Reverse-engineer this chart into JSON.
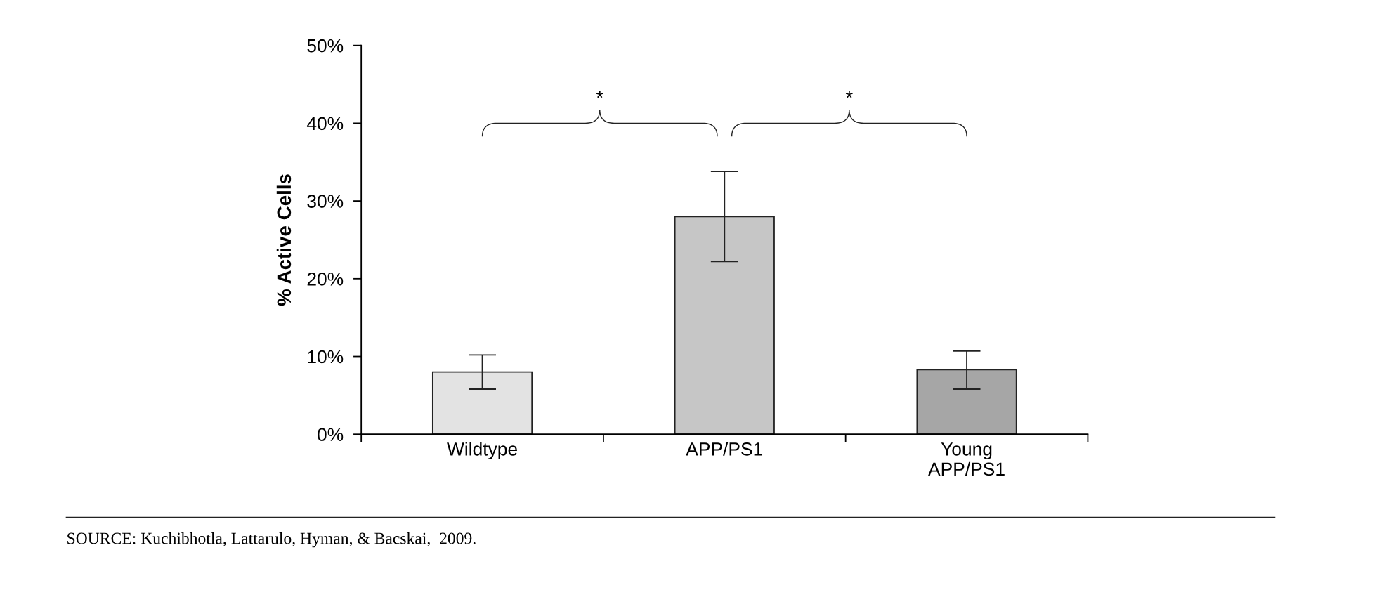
{
  "chart_data": {
    "type": "bar",
    "ylabel": "% Active Cells",
    "categories": [
      "Wildtype",
      "APP/PS1",
      "Young\nAPP/PS1"
    ],
    "values": [
      8.0,
      28.0,
      8.3
    ],
    "colors": [
      "#e3e3e3",
      "#c6c6c6",
      "#a6a6a6"
    ],
    "errors": [
      [
        5.8,
        10.2
      ],
      [
        22.2,
        33.8
      ],
      [
        5.8,
        10.7
      ]
    ],
    "ylim": [
      0,
      50
    ],
    "yticks": [
      {
        "value": 0,
        "label": "0%"
      },
      {
        "value": 10,
        "label": "10%"
      },
      {
        "value": 20,
        "label": "20%"
      },
      {
        "value": 30,
        "label": "30%"
      },
      {
        "value": 40,
        "label": "40%"
      },
      {
        "value": 50,
        "label": "50%"
      }
    ],
    "grid": false,
    "legend": false,
    "annotations": [
      "*",
      "*",
      "SOURCE: Kuchibhotla, Lattarulo, Hyman, & Bacskai,  2009."
    ]
  }
}
